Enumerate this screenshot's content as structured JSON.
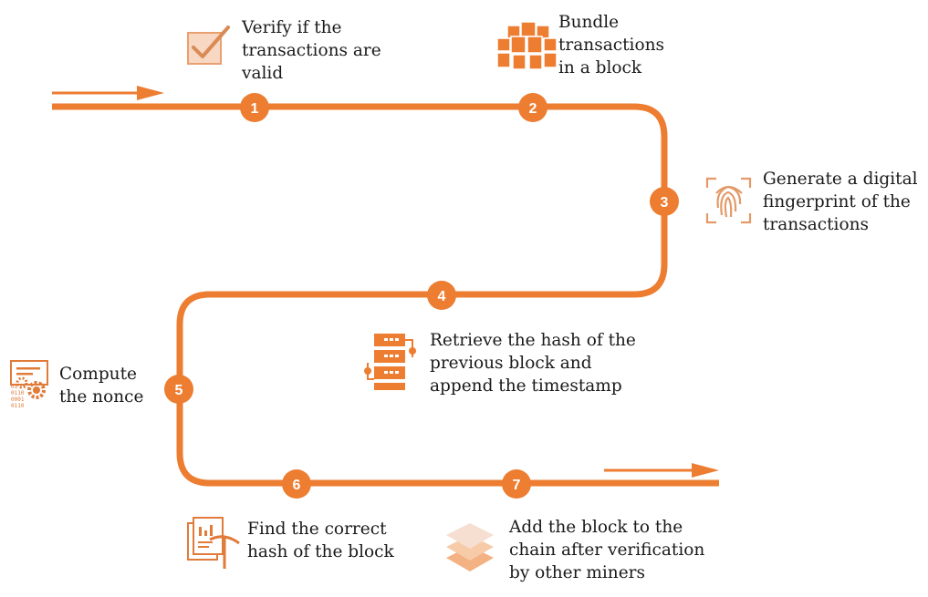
{
  "colors": {
    "accent": "#ed7d31",
    "accent_dark": "#d0611b",
    "accent_light": "#f4b183",
    "accent_pale": "#f8d8c2",
    "text": "#1a1a1a",
    "background": "#ffffff"
  },
  "steps": [
    {
      "number": "1",
      "text": "Verify if the\ntransactions are\nvalid",
      "icon": "checkbox-icon"
    },
    {
      "number": "2",
      "text": "Bundle\ntransactions\nin a block",
      "icon": "cubes-icon"
    },
    {
      "number": "3",
      "text": "Generate a digital\nfingerprint of the\ntransactions",
      "icon": "fingerprint-icon"
    },
    {
      "number": "4",
      "text": "Retrieve the hash of the\nprevious block and\nappend the timestamp",
      "icon": "server-icon"
    },
    {
      "number": "5",
      "text": "Compute\nthe nonce",
      "icon": "binary-gears-icon"
    },
    {
      "number": "6",
      "text": "Find the correct\nhash of the block",
      "icon": "document-pickaxe-icon"
    },
    {
      "number": "7",
      "text": "Add the block to the\nchain after verification\nby other miners",
      "icon": "layers-icon"
    }
  ]
}
